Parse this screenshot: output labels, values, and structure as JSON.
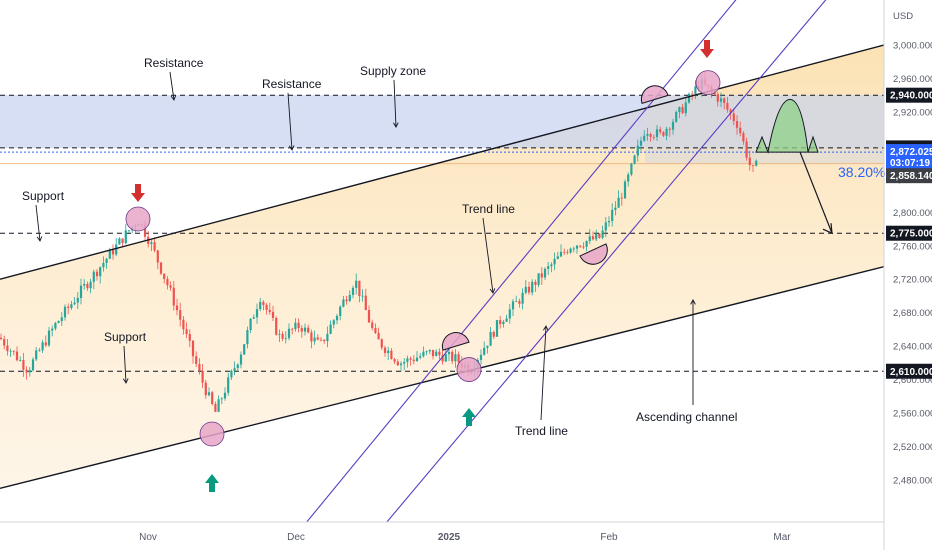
{
  "chart_data": {
    "type": "line",
    "series_type": "candlestick",
    "currency": "USD",
    "yticks": [
      3000,
      2960,
      2920,
      2880,
      2840,
      2800,
      2760,
      2720,
      2680,
      2640,
      2600,
      2560,
      2520,
      2480
    ],
    "ytick_labels": [
      "3,000.000",
      "2,960.000",
      "2,920.000",
      "2,880.000",
      "2,840.000",
      "2,800.000",
      "2,760.000",
      "2,720.000",
      "2,680.000",
      "2,640.000",
      "2,600.000",
      "2,560.000",
      "2,520.000",
      "2,480.000"
    ],
    "xticks": [
      "Nov",
      "Dec",
      "2025",
      "Feb",
      "Mar"
    ],
    "ylim": [
      2460,
      3020
    ],
    "levels": [
      {
        "value": 2940,
        "label": "2,940.000",
        "color": "#131722"
      },
      {
        "value": 2877,
        "label": "2,877.000",
        "color": "#131722"
      },
      {
        "value": 2775,
        "label": "2,775.000",
        "color": "#131722"
      },
      {
        "value": 2610,
        "label": "2,610.000",
        "color": "#131722"
      }
    ],
    "price_badges": [
      {
        "value": 2872.025,
        "label": "2,872.025",
        "countdown": "03:07:19",
        "color": "#2962ff"
      },
      {
        "value": 2858.14,
        "label": "2,858.140",
        "color": "#3d3f47"
      }
    ],
    "fib_label": "38.20%",
    "annotations": {
      "resistance_1": "Resistance",
      "resistance_2": "Resistance",
      "supply_zone": "Supply zone",
      "support_1": "Support",
      "support_2": "Support",
      "trend_line_1": "Trend line",
      "trend_line_2": "Trend line",
      "ascending_channel": "Ascending channel"
    },
    "colors": {
      "up": "#26a69a",
      "down": "#ef5350",
      "channel_fill": "#fde8c4",
      "supply_zone": "#c9d4f2",
      "trend_channel": "#5b3cc4",
      "marker": "#e7a6c8",
      "arrow_red": "#d32f2f",
      "arrow_green": "#089981"
    }
  }
}
